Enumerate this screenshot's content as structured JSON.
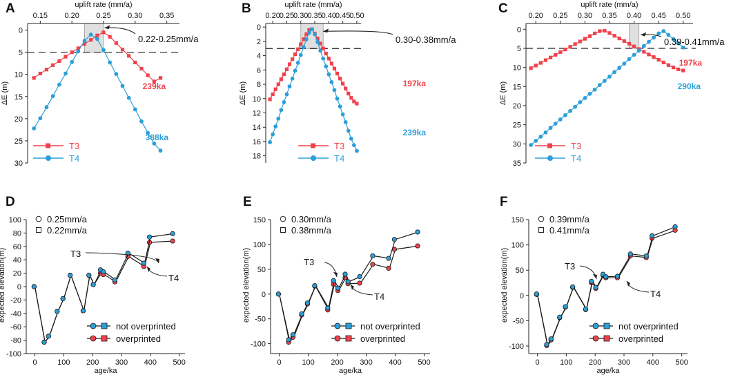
{
  "colors": {
    "t3": "#f0424b",
    "t4": "#2c9fd9",
    "axis": "#222222",
    "shade": "#e0e0e0",
    "shade_stroke": "#9a9a9a"
  },
  "chart_data": [
    {
      "panel": "A",
      "type": "line",
      "xlabel": "uplift rate (mm/a)",
      "ylabel": "ΔE (m)",
      "xlim": [
        0.13,
        0.37
      ],
      "xticks": [
        0.15,
        0.2,
        0.25,
        0.3,
        0.35
      ],
      "xtick_labels": [
        "0.15",
        "0.20",
        "0.25",
        "0.30",
        "0.35"
      ],
      "ylim": [
        -1.5,
        30
      ],
      "yticks": [
        0,
        5,
        10,
        15,
        20,
        25,
        30
      ],
      "ytick_labels": [
        "0",
        "5",
        "10",
        "15",
        "20",
        "25",
        "30"
      ],
      "dashed_y": 5,
      "shade": [
        0.22,
        0.25
      ],
      "annotation": "0.22-0.25mm/a",
      "annotation_target": [
        0.245,
        -0.5
      ],
      "series": [
        {
          "name": "T3",
          "marker": "square",
          "label": "239ka",
          "x": [
            0.14,
            0.15,
            0.16,
            0.17,
            0.18,
            0.19,
            0.2,
            0.21,
            0.22,
            0.23,
            0.24,
            0.25,
            0.26,
            0.27,
            0.28,
            0.29,
            0.3,
            0.31,
            0.32,
            0.33,
            0.34
          ],
          "y": [
            10.8,
            9.8,
            8.9,
            7.9,
            7.0,
            6.0,
            5.0,
            4.1,
            3.1,
            2.2,
            1.2,
            0.5,
            1.5,
            2.9,
            4.4,
            5.8,
            7.3,
            8.7,
            10.2,
            11.6,
            10.8
          ]
        },
        {
          "name": "T4",
          "marker": "circle",
          "label": "388ka",
          "x": [
            0.14,
            0.15,
            0.16,
            0.17,
            0.18,
            0.19,
            0.2,
            0.21,
            0.22,
            0.23,
            0.24,
            0.25,
            0.26,
            0.27,
            0.28,
            0.29,
            0.3,
            0.31,
            0.32,
            0.33,
            0.34
          ],
          "y": [
            22.2,
            19.9,
            17.4,
            14.9,
            12.3,
            9.8,
            7.2,
            4.8,
            2.4,
            1.0,
            2.0,
            4.5,
            7.3,
            9.9,
            12.6,
            15.3,
            17.9,
            20.6,
            23.2,
            25.6,
            27.2
          ]
        }
      ]
    },
    {
      "panel": "B",
      "type": "line",
      "xlabel": "uplift rate (mm/a)",
      "ylabel": "ΔE (m)",
      "xlim": [
        0.175,
        0.515
      ],
      "xticks": [
        0.2,
        0.25,
        0.3,
        0.35,
        0.4,
        0.45,
        0.5
      ],
      "xtick_labels": [
        "0.20",
        "0.25",
        "0.30",
        "0.35",
        "0.40",
        "0.45",
        "0.50"
      ],
      "ylim": [
        -0.5,
        19
      ],
      "yticks": [
        0,
        2,
        4,
        6,
        8,
        10,
        12,
        14,
        16,
        18
      ],
      "ytick_labels": [
        "0",
        "2",
        "4",
        "6",
        "8",
        "10",
        "12",
        "14",
        "16",
        "18"
      ],
      "dashed_y": 3,
      "shade": [
        0.3,
        0.38
      ],
      "annotation": "0.30-0.38mm/a",
      "annotation_target": [
        0.365,
        0.6
      ],
      "series": [
        {
          "name": "T3",
          "marker": "square",
          "label": "197ka",
          "x": [
            0.19,
            0.2,
            0.21,
            0.22,
            0.23,
            0.24,
            0.25,
            0.26,
            0.27,
            0.28,
            0.29,
            0.3,
            0.31,
            0.32,
            0.33,
            0.34,
            0.35,
            0.36,
            0.37,
            0.38,
            0.39,
            0.4,
            0.41,
            0.42,
            0.43,
            0.44,
            0.45,
            0.46,
            0.47,
            0.48,
            0.49,
            0.5
          ],
          "y": [
            10.1,
            9.4,
            8.7,
            8.0,
            7.3,
            6.6,
            5.9,
            5.2,
            4.5,
            3.8,
            3.1,
            2.4,
            1.7,
            1.0,
            0.4,
            0.3,
            0.9,
            1.6,
            2.3,
            3.0,
            3.7,
            4.4,
            5.1,
            5.8,
            6.5,
            7.2,
            7.9,
            8.6,
            9.3,
            9.9,
            10.4,
            10.7
          ]
        },
        {
          "name": "T4",
          "marker": "circle",
          "label": "239ka",
          "x": [
            0.19,
            0.2,
            0.21,
            0.22,
            0.23,
            0.24,
            0.25,
            0.26,
            0.27,
            0.28,
            0.29,
            0.3,
            0.31,
            0.32,
            0.33,
            0.34,
            0.35,
            0.36,
            0.37,
            0.38,
            0.39,
            0.4,
            0.41,
            0.42,
            0.43,
            0.44,
            0.45,
            0.46,
            0.47,
            0.48,
            0.49,
            0.5
          ],
          "y": [
            16.1,
            15.0,
            13.9,
            12.8,
            11.6,
            10.5,
            9.4,
            8.3,
            7.2,
            6.1,
            5.0,
            3.9,
            2.8,
            1.7,
            0.8,
            0.3,
            1.0,
            2.1,
            3.3,
            4.4,
            5.5,
            6.6,
            7.7,
            8.8,
            10.0,
            11.1,
            12.2,
            13.3,
            14.5,
            15.6,
            16.5,
            17.3
          ]
        }
      ]
    },
    {
      "panel": "C",
      "type": "line",
      "xlabel": "uplift rate (mm/a)",
      "ylabel": "ΔE (m)",
      "xlim": [
        0.18,
        0.52
      ],
      "xticks": [
        0.2,
        0.25,
        0.3,
        0.35,
        0.4,
        0.45,
        0.5
      ],
      "xtick_labels": [
        "0.20",
        "0.25",
        "0.30",
        "0.35",
        "0.40",
        "0.45",
        "0.50"
      ],
      "ylim": [
        -1.5,
        35
      ],
      "yticks": [
        0,
        5,
        10,
        15,
        20,
        25,
        30,
        35
      ],
      "ytick_labels": [
        "0",
        "5",
        "10",
        "15",
        "20",
        "25",
        "30",
        "35"
      ],
      "dashed_y": 5,
      "shade": [
        0.39,
        0.41
      ],
      "annotation": "0.39-0.41mm/a",
      "annotation_target": [
        0.405,
        1.5
      ],
      "series": [
        {
          "name": "T3",
          "marker": "square",
          "label": "197ka",
          "x": [
            0.19,
            0.2,
            0.21,
            0.22,
            0.23,
            0.24,
            0.25,
            0.26,
            0.27,
            0.28,
            0.29,
            0.3,
            0.31,
            0.32,
            0.33,
            0.34,
            0.35,
            0.36,
            0.37,
            0.38,
            0.39,
            0.4,
            0.41,
            0.42,
            0.43,
            0.44,
            0.45,
            0.46,
            0.47,
            0.48,
            0.49,
            0.5
          ],
          "y": [
            10.2,
            9.5,
            8.8,
            8.1,
            7.4,
            6.7,
            6.0,
            5.3,
            4.6,
            3.9,
            3.2,
            2.5,
            1.8,
            1.1,
            0.5,
            0.4,
            1.0,
            1.7,
            2.4,
            3.1,
            3.8,
            4.5,
            5.2,
            5.9,
            6.6,
            7.3,
            8.0,
            8.7,
            9.4,
            10.0,
            10.5,
            10.8
          ]
        },
        {
          "name": "T4",
          "marker": "circle",
          "label": "290ka",
          "x": [
            0.19,
            0.2,
            0.21,
            0.22,
            0.23,
            0.24,
            0.25,
            0.26,
            0.27,
            0.28,
            0.29,
            0.3,
            0.31,
            0.32,
            0.33,
            0.34,
            0.35,
            0.36,
            0.37,
            0.38,
            0.39,
            0.4,
            0.41,
            0.42,
            0.43,
            0.44,
            0.45,
            0.46,
            0.47,
            0.48,
            0.49,
            0.5
          ],
          "y": [
            30.3,
            29.2,
            28.1,
            27.0,
            25.8,
            24.7,
            23.6,
            22.5,
            21.4,
            20.3,
            19.1,
            18.0,
            16.9,
            15.8,
            14.6,
            13.5,
            12.4,
            11.2,
            10.1,
            9.0,
            7.8,
            6.7,
            5.6,
            4.4,
            3.3,
            2.2,
            1.1,
            0.5,
            1.5,
            2.6,
            3.7,
            4.8
          ]
        }
      ]
    },
    {
      "panel": "D",
      "type": "line",
      "xlabel": "age/ka",
      "ylabel": "expected elevation(m)",
      "xlim": [
        -30,
        520
      ],
      "xticks": [
        0,
        100,
        200,
        300,
        400,
        500
      ],
      "xtick_labels": [
        "0",
        "100",
        "200",
        "300",
        "400",
        "500"
      ],
      "ylim": [
        -100,
        100
      ],
      "yticks": [
        -100,
        -80,
        -60,
        -40,
        -20,
        0,
        20,
        40,
        60,
        80,
        100
      ],
      "ytick_labels": [
        "-100",
        "-80",
        "-60",
        "-40",
        "-20",
        "0",
        "20",
        "40",
        "60",
        "80",
        "100"
      ],
      "rate_labels": [
        "0.25mm/a",
        "0.22mm/a"
      ],
      "series": [
        {
          "name": "not overprinted",
          "x": [
            0,
            35,
            50,
            80,
            100,
            125,
            170,
            190,
            205,
            230,
            240,
            280,
            325,
            380,
            400,
            480
          ],
          "y": [
            0,
            -83,
            -74,
            -37,
            -18,
            17,
            -36,
            17,
            3,
            25,
            22,
            10,
            50,
            35,
            74,
            79
          ]
        },
        {
          "name": "overprinted",
          "x": [
            0,
            35,
            50,
            80,
            100,
            125,
            170,
            190,
            205,
            230,
            240,
            280,
            325,
            380,
            400,
            480
          ],
          "y": [
            0,
            -83,
            -74,
            -37,
            -18,
            17,
            -36,
            17,
            3,
            20,
            18,
            7,
            45,
            30,
            66,
            68
          ]
        }
      ],
      "labels": [
        "T3",
        "T4"
      ]
    },
    {
      "panel": "E",
      "type": "line",
      "xlabel": "age/ka",
      "ylabel": "expected elevation(m)",
      "xlim": [
        -30,
        520
      ],
      "xticks": [
        0,
        100,
        200,
        300,
        400,
        500
      ],
      "xtick_labels": [
        "0",
        "100",
        "200",
        "300",
        "400",
        "500"
      ],
      "ylim": [
        -120,
        150
      ],
      "yticks": [
        -100,
        -50,
        0,
        50,
        100,
        150
      ],
      "ytick_labels": [
        "-100",
        "-50",
        "0",
        "50",
        "100",
        "150"
      ],
      "rate_labels": [
        "0.30mm/a",
        "0.38mm/a"
      ],
      "series": [
        {
          "name": "not overprinted",
          "x": [
            0,
            35,
            50,
            80,
            100,
            125,
            170,
            190,
            205,
            230,
            240,
            280,
            325,
            380,
            400,
            480
          ],
          "y": [
            0,
            -92,
            -82,
            -40,
            -18,
            17,
            -28,
            27,
            12,
            40,
            25,
            35,
            77,
            72,
            110,
            125
          ]
        },
        {
          "name": "overprinted",
          "x": [
            0,
            35,
            50,
            80,
            100,
            125,
            170,
            190,
            205,
            230,
            240,
            280,
            325,
            380,
            400,
            480
          ],
          "y": [
            0,
            -97,
            -87,
            -42,
            -20,
            16,
            -32,
            20,
            7,
            33,
            21,
            22,
            60,
            52,
            90,
            97
          ]
        }
      ],
      "labels": [
        "T3",
        "T4"
      ]
    },
    {
      "panel": "F",
      "type": "line",
      "xlabel": "age/ka",
      "ylabel": "expected elevation(m)",
      "xlim": [
        -30,
        520
      ],
      "xticks": [
        0,
        100,
        200,
        300,
        400,
        500
      ],
      "xtick_labels": [
        "0",
        "100",
        "200",
        "300",
        "400",
        "500"
      ],
      "ylim": [
        -115,
        150
      ],
      "yticks": [
        -100,
        -50,
        0,
        50,
        100,
        150
      ],
      "ytick_labels": [
        "-100",
        "-50",
        "0",
        "50",
        "100",
        "150"
      ],
      "rate_labels": [
        "0.39mm/a",
        "0.41mm/a"
      ],
      "series": [
        {
          "name": "not overprinted",
          "x": [
            0,
            35,
            50,
            80,
            100,
            125,
            170,
            190,
            205,
            230,
            240,
            280,
            325,
            380,
            400,
            480
          ],
          "y": [
            3,
            -97,
            -86,
            -43,
            -22,
            17,
            -27,
            28,
            16,
            42,
            37,
            38,
            82,
            78,
            118,
            136
          ]
        },
        {
          "name": "overprinted",
          "x": [
            0,
            35,
            50,
            80,
            100,
            125,
            170,
            190,
            205,
            230,
            240,
            280,
            325,
            380,
            400,
            480
          ],
          "y": [
            2,
            -99,
            -88,
            -44,
            -23,
            16,
            -28,
            25,
            14,
            40,
            35,
            35,
            78,
            75,
            113,
            129
          ]
        }
      ],
      "labels": [
        "T3",
        "T4"
      ]
    }
  ]
}
